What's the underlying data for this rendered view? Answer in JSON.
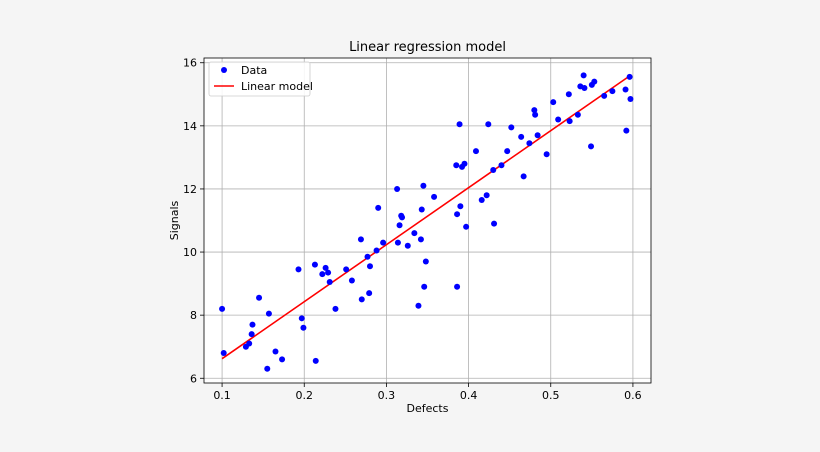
{
  "chart_data": {
    "type": "scatter",
    "title": "Linear regression model",
    "xlabel": "Defects",
    "ylabel": "Signals",
    "xlim": [
      0.078,
      0.622
    ],
    "ylim": [
      5.85,
      16.15
    ],
    "xticks": [
      0.1,
      0.2,
      0.3,
      0.4,
      0.5,
      0.6
    ],
    "xtick_labels": [
      "0.1",
      "0.2",
      "0.3",
      "0.4",
      "0.5",
      "0.6"
    ],
    "yticks": [
      6,
      8,
      10,
      12,
      14,
      16
    ],
    "ytick_labels": [
      "6",
      "8",
      "10",
      "12",
      "14",
      "16"
    ],
    "grid": true,
    "legend_position": "top-left",
    "series": [
      {
        "name": "Data",
        "kind": "scatter",
        "color": "#0000ff",
        "x": [
          0.1,
          0.102,
          0.129,
          0.133,
          0.136,
          0.137,
          0.145,
          0.155,
          0.157,
          0.165,
          0.173,
          0.193,
          0.197,
          0.199,
          0.213,
          0.214,
          0.222,
          0.226,
          0.229,
          0.231,
          0.238,
          0.251,
          0.258,
          0.269,
          0.27,
          0.277,
          0.279,
          0.28,
          0.288,
          0.29,
          0.296,
          0.313,
          0.314,
          0.316,
          0.318,
          0.319,
          0.326,
          0.334,
          0.339,
          0.342,
          0.343,
          0.345,
          0.346,
          0.348,
          0.358,
          0.385,
          0.386,
          0.386,
          0.389,
          0.39,
          0.392,
          0.395,
          0.397,
          0.409,
          0.416,
          0.422,
          0.424,
          0.43,
          0.431,
          0.44,
          0.447,
          0.452,
          0.464,
          0.467,
          0.474,
          0.48,
          0.481,
          0.484,
          0.495,
          0.503,
          0.509,
          0.522,
          0.523,
          0.533,
          0.536,
          0.54,
          0.541,
          0.549,
          0.55,
          0.553,
          0.565,
          0.575,
          0.591,
          0.592,
          0.596,
          0.597
        ],
        "y": [
          8.2,
          6.8,
          7.0,
          7.1,
          7.4,
          7.7,
          8.55,
          6.3,
          8.05,
          6.85,
          6.6,
          9.45,
          7.9,
          7.6,
          9.6,
          6.55,
          9.3,
          9.5,
          9.35,
          9.05,
          8.2,
          9.45,
          9.1,
          10.4,
          8.5,
          9.85,
          8.7,
          9.55,
          10.05,
          11.4,
          10.3,
          12.0,
          10.3,
          10.85,
          11.15,
          11.1,
          10.2,
          10.6,
          8.3,
          10.4,
          11.35,
          12.1,
          8.9,
          9.7,
          11.75,
          12.75,
          11.2,
          8.9,
          14.05,
          11.45,
          12.7,
          12.8,
          10.8,
          13.2,
          11.65,
          11.8,
          14.05,
          12.6,
          10.9,
          12.75,
          13.2,
          13.95,
          13.65,
          12.4,
          13.45,
          14.5,
          14.35,
          13.7,
          13.1,
          14.75,
          14.2,
          15.0,
          14.15,
          14.35,
          15.25,
          15.6,
          15.2,
          13.35,
          15.3,
          15.4,
          14.95,
          15.1,
          15.15,
          13.85,
          15.55,
          14.85
        ]
      },
      {
        "name": "Linear model",
        "kind": "line",
        "color": "#ff0000",
        "x": [
          0.1,
          0.597
        ],
        "y": [
          6.62,
          15.6
        ]
      }
    ]
  }
}
